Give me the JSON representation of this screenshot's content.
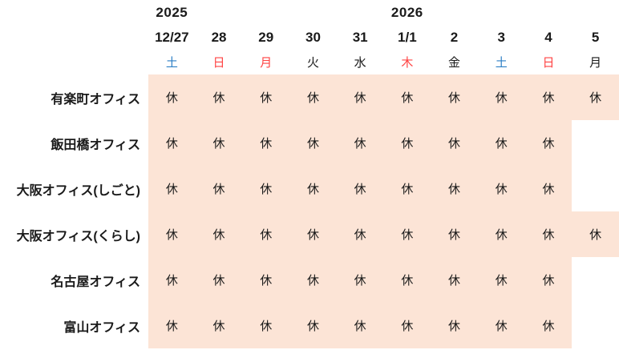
{
  "calendar": {
    "title_semantic": "year-end-new-year-office-holiday-calendar",
    "closed_label": "休",
    "colors": {
      "closed_bg": "#FCE4D6",
      "saturday_text": "#2E80C6",
      "holiday_text": "#FF4343",
      "text": "#1A1A1A"
    },
    "years": [
      {
        "label": "2025",
        "column_index": 0
      },
      {
        "label": "2026",
        "column_index": 5
      }
    ],
    "dates": [
      "12/27",
      "28",
      "29",
      "30",
      "31",
      "1/1",
      "2",
      "3",
      "4",
      "5"
    ],
    "weekdays": [
      {
        "label": "土",
        "color": "saturday"
      },
      {
        "label": "日",
        "color": "holiday"
      },
      {
        "label": "月",
        "color": "holiday"
      },
      {
        "label": "火",
        "color": "weekday"
      },
      {
        "label": "水",
        "color": "weekday"
      },
      {
        "label": "木",
        "color": "holiday"
      },
      {
        "label": "金",
        "color": "weekday"
      },
      {
        "label": "土",
        "color": "saturday"
      },
      {
        "label": "日",
        "color": "holiday"
      },
      {
        "label": "月",
        "color": "weekday"
      }
    ],
    "rows": [
      {
        "office": "有楽町オフィス",
        "closed": [
          1,
          1,
          1,
          1,
          1,
          1,
          1,
          1,
          1,
          1
        ]
      },
      {
        "office": "飯田橋オフィス",
        "closed": [
          1,
          1,
          1,
          1,
          1,
          1,
          1,
          1,
          1,
          0
        ]
      },
      {
        "office": "大阪オフィス(しごと)",
        "closed": [
          1,
          1,
          1,
          1,
          1,
          1,
          1,
          1,
          1,
          0
        ]
      },
      {
        "office": "大阪オフィス(くらし)",
        "closed": [
          1,
          1,
          1,
          1,
          1,
          1,
          1,
          1,
          1,
          1
        ]
      },
      {
        "office": "名古屋オフィス",
        "closed": [
          1,
          1,
          1,
          1,
          1,
          1,
          1,
          1,
          1,
          0
        ]
      },
      {
        "office": "富山オフィス",
        "closed": [
          1,
          1,
          1,
          1,
          1,
          1,
          1,
          1,
          1,
          0
        ]
      }
    ]
  }
}
